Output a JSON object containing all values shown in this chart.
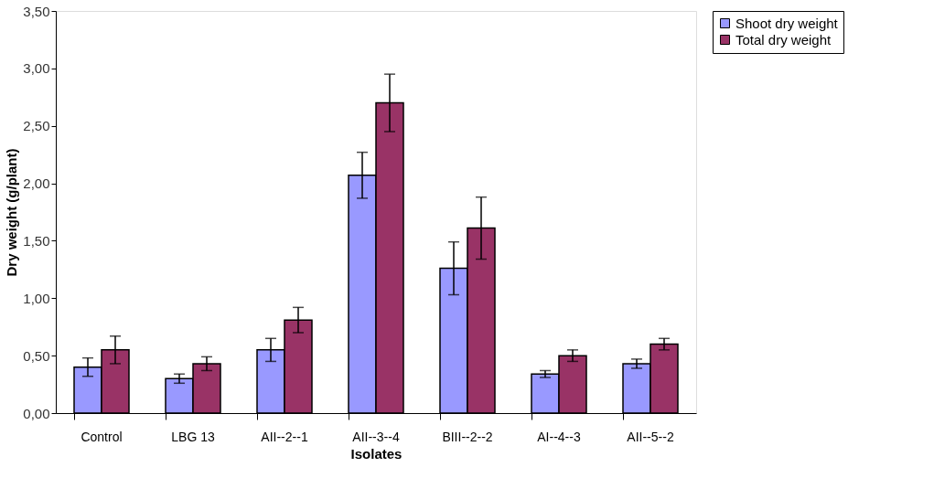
{
  "chart_data": {
    "type": "bar",
    "xlabel": "Isolates",
    "ylabel": "Dry weight (g/plant)",
    "categories": [
      "Control",
      "LBG 13",
      "AII--2--1",
      "AII--3--4",
      "BIII--2--2",
      "AI--4--3",
      "AII--5--2"
    ],
    "series": [
      {
        "name": "Shoot dry weight",
        "color": "#9999ff",
        "values": [
          0.4,
          0.3,
          0.55,
          2.07,
          1.26,
          0.34,
          0.43
        ],
        "errors": [
          0.08,
          0.04,
          0.1,
          0.2,
          0.23,
          0.03,
          0.04
        ]
      },
      {
        "name": "Total dry weight",
        "color": "#993366",
        "values": [
          0.55,
          0.43,
          0.81,
          2.7,
          1.61,
          0.5,
          0.6
        ],
        "errors": [
          0.12,
          0.06,
          0.11,
          0.25,
          0.27,
          0.05,
          0.05
        ]
      }
    ],
    "ylim": [
      0,
      3.5
    ],
    "yticks": [
      {
        "value": 0,
        "label": "0,00"
      },
      {
        "value": 0.5,
        "label": "0,50"
      },
      {
        "value": 1,
        "label": "1,00"
      },
      {
        "value": 1.5,
        "label": "1,50"
      },
      {
        "value": 2,
        "label": "2,00"
      },
      {
        "value": 2.5,
        "label": "2,50"
      },
      {
        "value": 3,
        "label": "3,00"
      },
      {
        "value": 3.5,
        "label": "3,50"
      }
    ],
    "grid": false,
    "legend": "right"
  }
}
